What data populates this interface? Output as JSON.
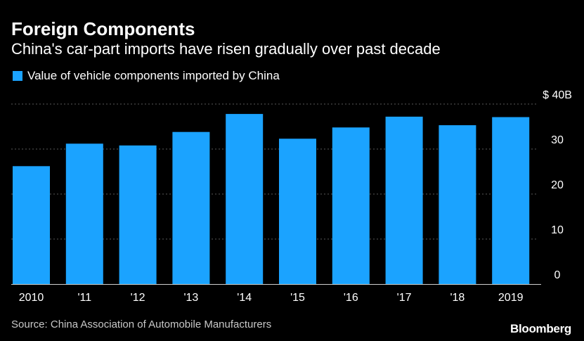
{
  "colors": {
    "bar": "#1ba3ff",
    "background": "#000000",
    "grid": "#5a5a5a",
    "text": "#ffffff",
    "muted": "#c8c8c8"
  },
  "chart_data": {
    "type": "bar",
    "title": "Foreign Components",
    "subtitle": "China's car-part imports have risen gradually over past decade",
    "legend": [
      "Value of vehicle components imported by China"
    ],
    "legend_position": "top-left",
    "categories": [
      "2010",
      "'11",
      "'12",
      "'13",
      "'14",
      "'15",
      "'16",
      "'17",
      "'18",
      "2019"
    ],
    "series": [
      {
        "name": "Value of vehicle components imported by China",
        "values": [
          26.2,
          31.2,
          30.8,
          33.8,
          37.8,
          32.3,
          34.8,
          37.2,
          35.3,
          37.1
        ]
      }
    ],
    "xlabel": "",
    "ylabel": "",
    "ylim": [
      0,
      40
    ],
    "yticks": [
      0,
      10,
      20,
      30,
      40
    ],
    "ytick_labels": [
      "0",
      "10",
      "20",
      "30",
      "$ 40B"
    ],
    "yaxis_side": "right",
    "grid": true,
    "source": "Source: China Association of Automobile Manufacturers",
    "brand": "Bloomberg"
  }
}
